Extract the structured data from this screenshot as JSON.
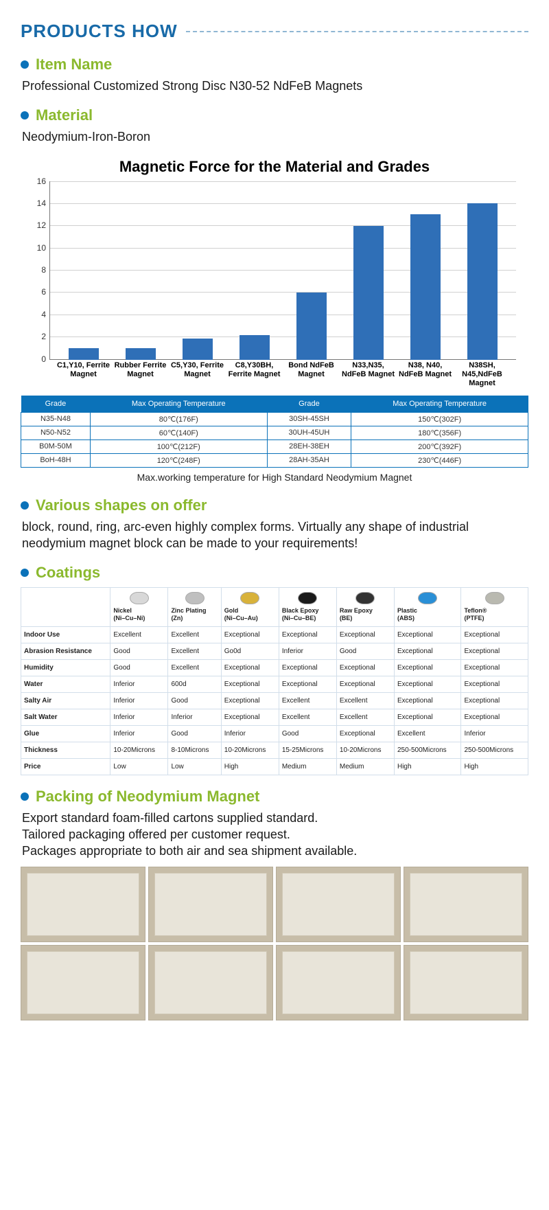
{
  "header": {
    "title": "PRODUCTS HOW"
  },
  "item_name": {
    "heading": "Item Name",
    "text": "Professional Customized Strong Disc N30-52 NdFeB Magnets"
  },
  "material": {
    "heading": "Material",
    "text": "Neodymium-Iron-Boron"
  },
  "chart": {
    "title": "Magnetic Force for the Material and Grades",
    "type": "bar",
    "y_max": 16,
    "y_ticks": [
      0,
      2,
      4,
      6,
      8,
      10,
      12,
      14,
      16
    ],
    "bar_color": "#2f6fb7",
    "grid_color": "#d0d0d0",
    "background_color": "#ffffff",
    "title_fontsize": 22,
    "label_fontsize": 11,
    "bars": [
      {
        "label": "C1,Y10, Ferrite Magnet",
        "value": 1.0
      },
      {
        "label": "Rubber Ferrite Magnet",
        "value": 1.0
      },
      {
        "label": "C5,Y30, Ferrite Magnet",
        "value": 1.9
      },
      {
        "label": "C8,Y30BH, Ferrite Magnet",
        "value": 2.2
      },
      {
        "label": "Bond NdFeB Magnet",
        "value": 6.0
      },
      {
        "label": "N33,N35, NdFeB Magnet",
        "value": 12.0
      },
      {
        "label": "N38, N40, NdFeB Magnet",
        "value": 13.0
      },
      {
        "label": "N38SH, N45,NdFeB Magnet",
        "value": 14.0
      }
    ]
  },
  "temp_table": {
    "header_bg": "#0b72b9",
    "headers": [
      "Grade",
      "Max Operating Temperature",
      "Grade",
      "Max Operating Temperature"
    ],
    "rows": [
      [
        "N35-N48",
        "80℃(176F)",
        "30SH-45SH",
        "150℃(302F)"
      ],
      [
        "N50-N52",
        "60℃(140F)",
        "30UH-45UH",
        "180℃(356F)"
      ],
      [
        "B0M-50M",
        "100℃(212F)",
        "28EH-38EH",
        "200℃(392F)"
      ],
      [
        "BoH-48H",
        "120℃(248F)",
        "28AH-35AH",
        "230℃(446F)"
      ]
    ],
    "caption": "Max.working temperature for High Standard Neodymium Magnet"
  },
  "shapes": {
    "heading": "Various shapes on offer",
    "text": "block, round, ring, arc-even highly complex forms. Virtually any shape of industrial neodymium magnet block can be made to your requirements!"
  },
  "coatings": {
    "heading": "Coatings",
    "columns": [
      {
        "name": "Nickel",
        "sub": "(Ni–Cu–Ni)",
        "color": "#d8d8d8"
      },
      {
        "name": "Zinc Plating",
        "sub": "(Zn)",
        "color": "#bfbfbf"
      },
      {
        "name": "Gold",
        "sub": "(Ni–Cu–Au)",
        "color": "#d8b23b"
      },
      {
        "name": "Black Epoxy",
        "sub": "(Ni–Cu–BE)",
        "color": "#1a1a1a"
      },
      {
        "name": "Raw Epoxy",
        "sub": "(BE)",
        "color": "#333333"
      },
      {
        "name": "Plastic",
        "sub": "(ABS)",
        "color": "#2a8fd6"
      },
      {
        "name": "Teflon®",
        "sub": "(PTFE)",
        "color": "#b9b9b0"
      }
    ],
    "rows": [
      {
        "label": "Indoor Use",
        "cells": [
          "Excellent",
          "Excellent",
          "Exceptional",
          "Exceptional",
          "Exceptional",
          "Exceptional",
          "Exceptional"
        ]
      },
      {
        "label": "Abrasion Resistance",
        "cells": [
          "Good",
          "Excellent",
          "Go0d",
          "Inferior",
          "Good",
          "Exceptional",
          "Exceptional"
        ]
      },
      {
        "label": "Humidity",
        "cells": [
          "Good",
          "Excellent",
          "Exceptional",
          "Exceptional",
          "Exceptional",
          "Exceptional",
          "Exceptional"
        ]
      },
      {
        "label": "Water",
        "cells": [
          "Inferior",
          "600d",
          "Exceptional",
          "Exceptional",
          "Exceptional",
          "Exceptional",
          "Exceptional"
        ]
      },
      {
        "label": "Salty Air",
        "cells": [
          "Inferior",
          "Good",
          "Exceptional",
          "Excellent",
          "Excellent",
          "Exceptional",
          "Exceptional"
        ]
      },
      {
        "label": "Salt Water",
        "cells": [
          "Inferior",
          "Inferior",
          "Exceptional",
          "Excellent",
          "Excellent",
          "Exceptional",
          "Exceptional"
        ]
      },
      {
        "label": "Glue",
        "cells": [
          "Inferior",
          "Good",
          "Inferior",
          "Good",
          "Exceptional",
          "Excellent",
          "Inferior"
        ]
      },
      {
        "label": "Thickness",
        "cells": [
          "10-20Microns",
          "8-10Microns",
          "10-20Microns",
          "15-25Microns",
          "10-20Microns",
          "250-500Microns",
          "250-500Microns"
        ]
      },
      {
        "label": "Price",
        "cells": [
          "Low",
          "Low",
          "High",
          "Medium",
          "Medium",
          "High",
          "High"
        ]
      }
    ]
  },
  "packing": {
    "heading": "Packing of Neodymium Magnet",
    "line1": "Export standard foam-filled cartons supplied standard.",
    "line2": "Tailored packaging offered per customer request.",
    "line3": "Packages appropriate to both air and sea shipment available."
  },
  "photo_placeholders": {
    "count": 8,
    "bg": "#c7bda8",
    "inner": "#e8e4d9"
  }
}
